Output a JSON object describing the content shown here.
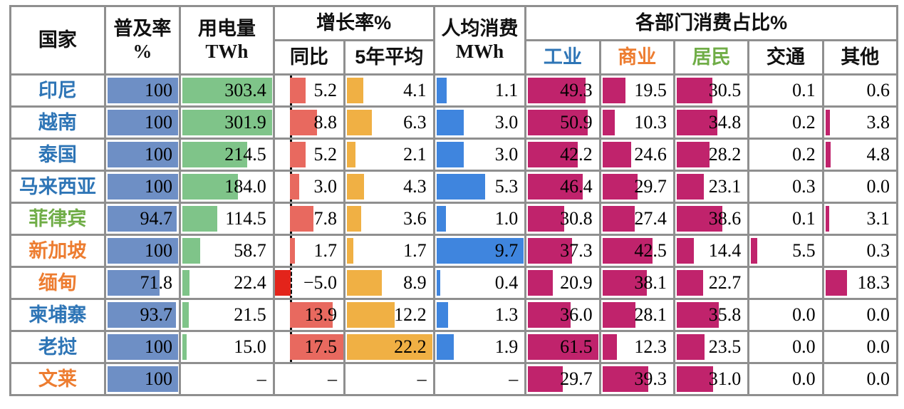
{
  "header": {
    "country": "国家",
    "penetration_l1": "普及率",
    "penetration_l2": "%",
    "consumption_l1": "用电量",
    "consumption_l2": "TWh",
    "growth": "增长率%",
    "yoy": "同比",
    "avg5y": "5年平均",
    "per_capita_l1": "人均消费",
    "per_capita_l2": "MWh",
    "sectors_group": "各部门消费占比%",
    "industry": "工业",
    "commercial": "商业",
    "residential": "居民",
    "transport": "交通",
    "other": "其他"
  },
  "colors": {
    "penetration_bar": "#6E8FC5",
    "consumption_bar": "#7FC489",
    "yoy_positive_bar": "#E8695F",
    "yoy_negative_bar": "#E3241B",
    "avg5y_bar": "#F0B044",
    "per_capita_bar": "#3F85DE",
    "sector_bar": "#C0236C",
    "country_blue": "#2E75B6",
    "country_green": "#70AD47",
    "country_orange": "#ED7D31",
    "grid_line": "#8f8f8f"
  },
  "chart_data": {
    "type": "table",
    "columns": [
      "国家",
      "普及率%",
      "用电量TWh",
      "增长率%同比",
      "增长率%5年平均",
      "人均消费MWh",
      "工业",
      "商业",
      "居民",
      "交通",
      "其他"
    ],
    "scales": {
      "penetration_max": 100,
      "consumption_max": 303.4,
      "yoy_min": -5.0,
      "yoy_max": 17.5,
      "yoy_axis_fraction": 0.222,
      "avg5y_max": 22.2,
      "per_capita_max": 9.7,
      "sector_max": 61.5
    },
    "rows": [
      {
        "country": "印尼",
        "color": "blue",
        "penetration": "100",
        "consumption": "303.4",
        "yoy": "5.2",
        "avg5y": "4.1",
        "per_capita": "1.1",
        "industry": "49.3",
        "commercial": "19.5",
        "residential": "30.5",
        "transport": "0.1",
        "other": "0.6"
      },
      {
        "country": "越南",
        "color": "blue",
        "penetration": "100",
        "consumption": "301.9",
        "yoy": "8.8",
        "avg5y": "6.3",
        "per_capita": "3.0",
        "industry": "50.9",
        "commercial": "10.3",
        "residential": "34.8",
        "transport": "0.2",
        "other": "3.8"
      },
      {
        "country": "泰国",
        "color": "blue",
        "penetration": "100",
        "consumption": "214.5",
        "yoy": "5.2",
        "avg5y": "2.1",
        "per_capita": "3.0",
        "industry": "42.2",
        "commercial": "24.6",
        "residential": "28.2",
        "transport": "0.2",
        "other": "4.8"
      },
      {
        "country": "马来西亚",
        "color": "blue",
        "penetration": "100",
        "consumption": "184.0",
        "yoy": "3.0",
        "avg5y": "4.3",
        "per_capita": "5.3",
        "industry": "46.4",
        "commercial": "29.7",
        "residential": "23.1",
        "transport": "0.3",
        "other": "0.0"
      },
      {
        "country": "菲律宾",
        "color": "green",
        "penetration": "94.7",
        "consumption": "114.5",
        "yoy": "7.8",
        "avg5y": "3.6",
        "per_capita": "1.0",
        "industry": "30.8",
        "commercial": "27.4",
        "residential": "38.6",
        "transport": "0.1",
        "other": "3.1"
      },
      {
        "country": "新加坡",
        "color": "orange",
        "penetration": "100",
        "consumption": "58.7",
        "yoy": "1.7",
        "avg5y": "1.7",
        "per_capita": "9.7",
        "industry": "37.3",
        "commercial": "42.5",
        "residential": "14.4",
        "transport": "5.5",
        "other": "0.3"
      },
      {
        "country": "缅甸",
        "color": "orange",
        "penetration": "71.8",
        "consumption": "22.4",
        "yoy": "−5.0",
        "avg5y": "8.9",
        "per_capita": "0.4",
        "industry": "20.9",
        "commercial": "38.1",
        "residential": "22.7",
        "transport": "",
        "other": "18.3"
      },
      {
        "country": "柬埔寨",
        "color": "blue",
        "penetration": "93.7",
        "consumption": "21.5",
        "yoy": "13.9",
        "avg5y": "12.2",
        "per_capita": "1.3",
        "industry": "36.0",
        "commercial": "28.1",
        "residential": "35.8",
        "transport": "0.0",
        "other": "0.0"
      },
      {
        "country": "老挝",
        "color": "blue",
        "penetration": "100",
        "consumption": "15.0",
        "yoy": "17.5",
        "avg5y": "22.2",
        "per_capita": "1.9",
        "industry": "61.5",
        "commercial": "12.3",
        "residential": "23.5",
        "transport": "0.0",
        "other": "0.0"
      },
      {
        "country": "文莱",
        "color": "orange",
        "penetration": "100",
        "consumption": "–",
        "yoy": "–",
        "avg5y": "–",
        "per_capita": "–",
        "industry": "29.7",
        "commercial": "39.3",
        "residential": "31.0",
        "transport": "0.0",
        "other": "0.0"
      }
    ]
  }
}
